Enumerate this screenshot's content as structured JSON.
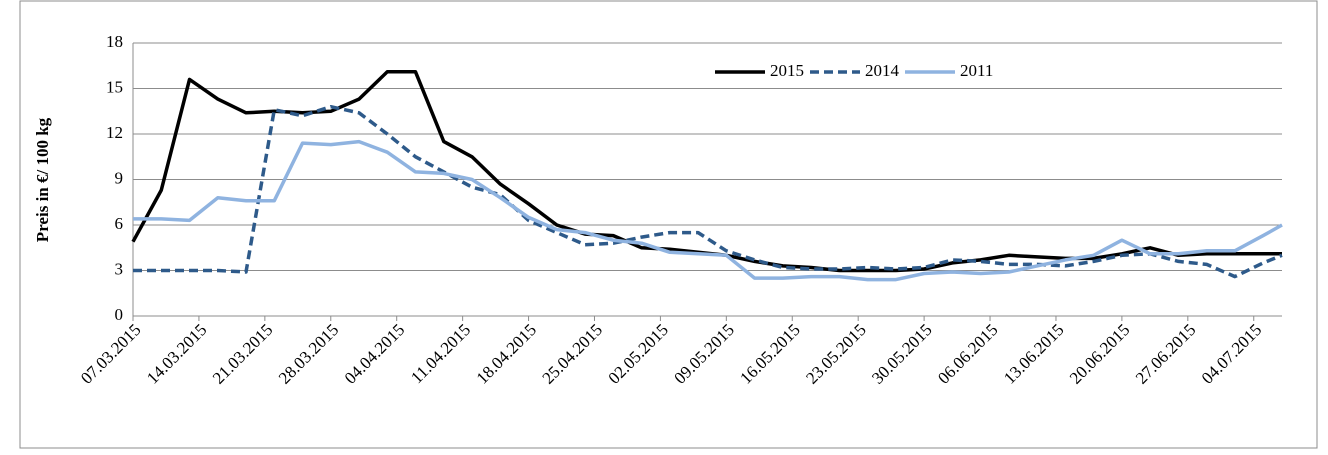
{
  "chart_data": {
    "type": "line",
    "y_label": "Preis in €/ 100 kg",
    "x": [
      "2015-03-07",
      "2015-03-10",
      "2015-03-13",
      "2015-03-16",
      "2015-03-19",
      "2015-03-22",
      "2015-03-25",
      "2015-03-28",
      "2015-03-31",
      "2015-04-03",
      "2015-04-06",
      "2015-04-09",
      "2015-04-12",
      "2015-04-15",
      "2015-04-18",
      "2015-04-21",
      "2015-04-24",
      "2015-04-27",
      "2015-04-30",
      "2015-05-03",
      "2015-05-06",
      "2015-05-09",
      "2015-05-12",
      "2015-05-15",
      "2015-05-18",
      "2015-05-21",
      "2015-05-24",
      "2015-05-27",
      "2015-05-30",
      "2015-06-02",
      "2015-06-05",
      "2015-06-08",
      "2015-06-11",
      "2015-06-14",
      "2015-06-17",
      "2015-06-20",
      "2015-06-23",
      "2015-06-26",
      "2015-06-29",
      "2015-07-02",
      "2015-07-05",
      "2015-07-07"
    ],
    "series": [
      {
        "name": "2015",
        "color": "#000000",
        "dash": false,
        "values": [
          4.9,
          8.3,
          15.6,
          14.3,
          13.4,
          13.5,
          13.4,
          13.5,
          14.3,
          16.1,
          16.1,
          11.5,
          10.5,
          8.7,
          7.4,
          6.0,
          5.4,
          5.3,
          4.5,
          4.4,
          4.2,
          4.0,
          3.6,
          3.3,
          3.2,
          3.0,
          3.0,
          3.0,
          3.1,
          3.5,
          3.7,
          4.0,
          3.9,
          3.8,
          3.8,
          4.1,
          4.5,
          4.0,
          4.1,
          4.1,
          4.1,
          4.1
        ]
      },
      {
        "name": "2014",
        "color": "#2e5a8a",
        "dash": true,
        "values": [
          3.0,
          3.0,
          3.0,
          3.0,
          2.9,
          13.6,
          13.2,
          13.8,
          13.4,
          12.0,
          10.5,
          9.5,
          8.5,
          8.0,
          6.3,
          5.5,
          4.7,
          4.8,
          5.2,
          5.5,
          5.5,
          4.3,
          3.7,
          3.2,
          3.1,
          3.1,
          3.2,
          3.1,
          3.2,
          3.7,
          3.6,
          3.4,
          3.4,
          3.3,
          3.6,
          4.0,
          4.1,
          3.6,
          3.4,
          2.6,
          3.5,
          4.0
        ]
      },
      {
        "name": "2011",
        "color": "#8fb3e0",
        "dash": false,
        "values": [
          6.4,
          6.4,
          6.3,
          7.8,
          7.6,
          7.6,
          11.4,
          11.3,
          11.5,
          10.8,
          9.5,
          9.4,
          9.0,
          7.8,
          6.5,
          5.7,
          5.5,
          5.0,
          4.8,
          4.2,
          4.1,
          4.0,
          2.5,
          2.5,
          2.6,
          2.6,
          2.4,
          2.4,
          2.8,
          2.9,
          2.8,
          2.9,
          3.3,
          3.7,
          4.0,
          5.0,
          4.1,
          4.1,
          4.3,
          4.3,
          5.3,
          6.0
        ]
      }
    ],
    "xlim": [
      "2015-03-07",
      "2015-07-07"
    ],
    "xticks": [
      {
        "value": "2015-03-07",
        "label": "07.03.2015"
      },
      {
        "value": "2015-03-14",
        "label": "14.03.2015"
      },
      {
        "value": "2015-03-21",
        "label": "21.03.2015"
      },
      {
        "value": "2015-03-28",
        "label": "28.03.2015"
      },
      {
        "value": "2015-04-04",
        "label": "04.04.2015"
      },
      {
        "value": "2015-04-11",
        "label": "11.04.2015"
      },
      {
        "value": "2015-04-18",
        "label": "18.04.2015"
      },
      {
        "value": "2015-04-25",
        "label": "25.04.2015"
      },
      {
        "value": "2015-05-02",
        "label": "02.05.2015"
      },
      {
        "value": "2015-05-09",
        "label": "09.05.2015"
      },
      {
        "value": "2015-05-16",
        "label": "16.05.2015"
      },
      {
        "value": "2015-05-23",
        "label": "23.05.2015"
      },
      {
        "value": "2015-05-30",
        "label": "30.05.2015"
      },
      {
        "value": "2015-06-06",
        "label": "06.06.2015"
      },
      {
        "value": "2015-06-13",
        "label": "13.06.2015"
      },
      {
        "value": "2015-06-20",
        "label": "20.06.2015"
      },
      {
        "value": "2015-06-27",
        "label": "27.06.2015"
      },
      {
        "value": "2015-07-04",
        "label": "04.07.2015"
      }
    ],
    "ylim": [
      0,
      18
    ],
    "yticks": [
      0,
      3,
      6,
      9,
      12,
      15,
      18
    ],
    "grid": true,
    "legend": "top-right"
  }
}
